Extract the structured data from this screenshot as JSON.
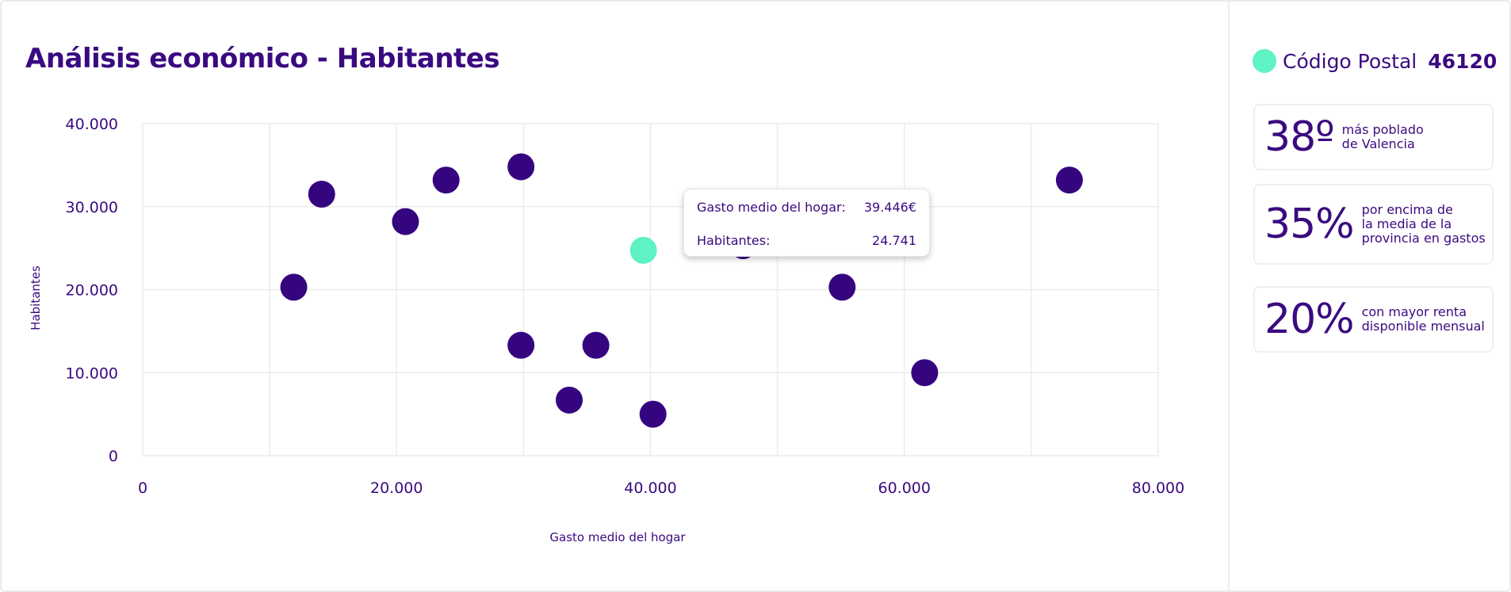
{
  "header": {
    "title": "Análisis económico - Habitantes"
  },
  "chart_data": {
    "type": "scatter",
    "xlabel": "Gasto medio del hogar",
    "ylabel": "Habitantes",
    "xlim": [
      0,
      80000
    ],
    "ylim": [
      0,
      40000
    ],
    "x_ticks": [
      0,
      20000,
      40000,
      60000,
      80000
    ],
    "y_ticks": [
      0,
      10000,
      20000,
      30000,
      40000
    ],
    "x_tick_labels": [
      "0",
      "20.000",
      "40.000",
      "60.000",
      "80.000"
    ],
    "y_tick_labels": [
      "0",
      "10.000",
      "20.000",
      "30.000",
      "40.000"
    ],
    "grid": true,
    "series": [
      {
        "points": [
          {
            "x": 11900,
            "y": 20300
          },
          {
            "x": 14100,
            "y": 31500
          },
          {
            "x": 20700,
            "y": 28200
          },
          {
            "x": 23900,
            "y": 33200
          },
          {
            "x": 29800,
            "y": 34800
          },
          {
            "x": 29800,
            "y": 13300
          },
          {
            "x": 33600,
            "y": 6700
          },
          {
            "x": 35700,
            "y": 13300
          },
          {
            "x": 40200,
            "y": 5000
          },
          {
            "x": 47300,
            "y": 25300
          },
          {
            "x": 55100,
            "y": 20300
          },
          {
            "x": 61600,
            "y": 10000
          },
          {
            "x": 73000,
            "y": 33200
          }
        ],
        "color": "#350580"
      },
      {
        "points": [
          {
            "x": 39446,
            "y": 24741
          }
        ],
        "color": "#5ef2c4",
        "highlighted": true
      }
    ],
    "tooltip": {
      "x_label": "Gasto medio del hogar:",
      "x_value": "39.446€",
      "y_label": "Habitantes:",
      "y_value": "24.741"
    }
  },
  "sidebar": {
    "postal_label": "Código Postal",
    "postal_value": "46120",
    "accent_color": "#5ef2c4",
    "stats": [
      {
        "big": "38º",
        "desc": [
          "más poblado",
          "de Valencia"
        ]
      },
      {
        "big": "35%",
        "desc": [
          "por encima de",
          "la media de la",
          "provincia en gastos"
        ]
      },
      {
        "big": "20%",
        "desc": [
          "con mayor renta",
          "disponible mensual"
        ]
      }
    ]
  }
}
